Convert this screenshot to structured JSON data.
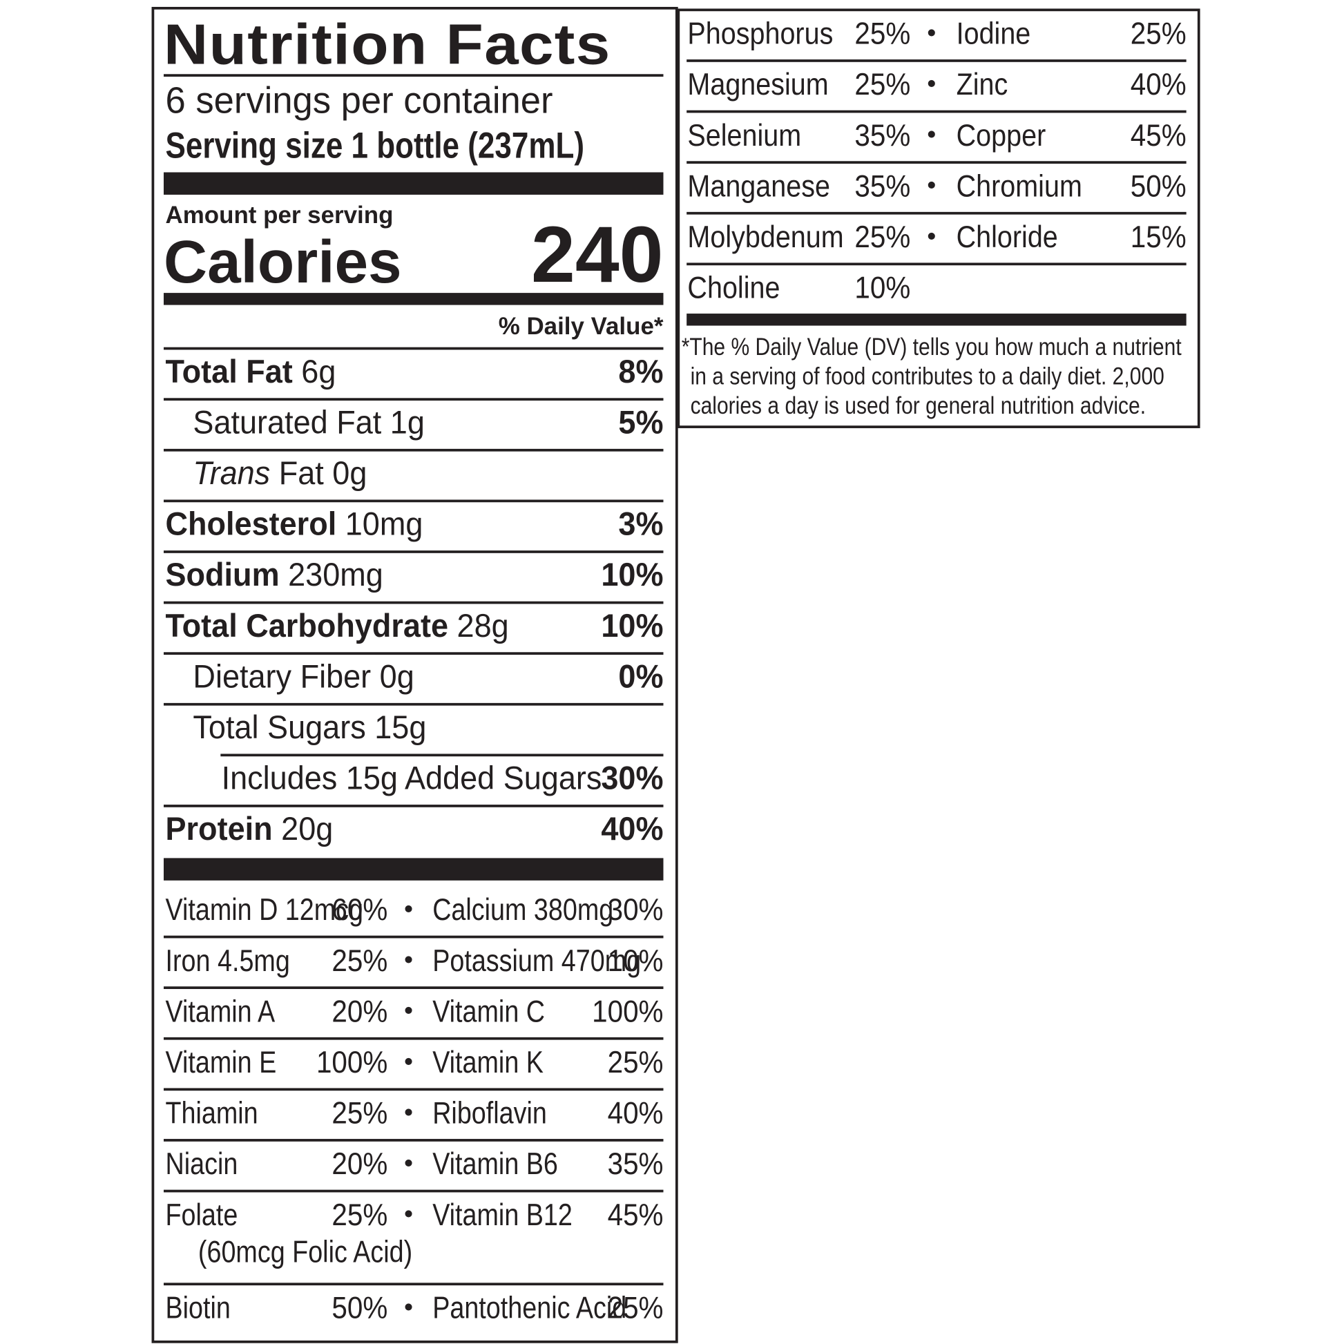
{
  "title": "Nutrition Facts",
  "servings": "6 servings per container",
  "serving_size": "Serving size 1 bottle (237mL)",
  "amount_per_serving": "Amount per serving",
  "calories_label": "Calories",
  "calories": 240,
  "daily_value_header": "% Daily Value*",
  "nutrients": [
    {
      "name": "Total Fat",
      "amount": "6g",
      "dv": "8%",
      "bold": true,
      "indent": 0
    },
    {
      "name": "Saturated Fat",
      "amount": "1g",
      "dv": "5%",
      "indent": 1
    },
    {
      "italic": "Trans",
      "name": "Fat",
      "amount": "0g",
      "indent": 1
    },
    {
      "name": "Cholesterol",
      "amount": "10mg",
      "dv": "3%",
      "bold": true,
      "indent": 0
    },
    {
      "name": "Sodium",
      "amount": "230mg",
      "dv": "10%",
      "bold": true,
      "indent": 0
    },
    {
      "name": "Total Carbohydrate",
      "amount": "28g",
      "dv": "10%",
      "bold": true,
      "indent": 0
    },
    {
      "name": "Dietary Fiber",
      "amount": "0g",
      "dv": "0%",
      "indent": 1
    },
    {
      "name": "Total Sugars",
      "amount": "15g",
      "indent": 1
    },
    {
      "name": "Includes 15g Added Sugars",
      "dv": "30%",
      "indent": 2
    },
    {
      "name": "Protein",
      "amount": "20g",
      "dv": "40%",
      "bold": true,
      "indent": 0
    }
  ],
  "vitamins": [
    {
      "left": {
        "name": "Vitamin D 12mcg",
        "dv": "60%"
      },
      "right": {
        "name": "Calcium 380mg",
        "dv": "30%"
      }
    },
    {
      "left": {
        "name": "Iron 4.5mg",
        "dv": "25%"
      },
      "right": {
        "name": "Potassium 470mg",
        "dv": "10%"
      }
    },
    {
      "left": {
        "name": "Vitamin A",
        "dv": "20%"
      },
      "right": {
        "name": "Vitamin C",
        "dv": "100%"
      }
    },
    {
      "left": {
        "name": "Vitamin E",
        "dv": "100%"
      },
      "right": {
        "name": "Vitamin K",
        "dv": "25%"
      }
    },
    {
      "left": {
        "name": "Thiamin",
        "dv": "25%"
      },
      "right": {
        "name": "Riboflavin",
        "dv": "40%"
      }
    },
    {
      "left": {
        "name": "Niacin",
        "dv": "20%"
      },
      "right": {
        "name": "Vitamin B6",
        "dv": "35%"
      }
    },
    {
      "left": {
        "name": "Folate",
        "dv": "25%",
        "note": "(60mcg Folic Acid)"
      },
      "right": {
        "name": "Vitamin B12",
        "dv": "45%"
      }
    },
    {
      "left": {
        "name": "Biotin",
        "dv": "50%"
      },
      "right": {
        "name": "Pantothenic Acid",
        "dv": "25%"
      }
    }
  ],
  "minerals": [
    {
      "left": {
        "name": "Phosphorus",
        "dv": "25%"
      },
      "right": {
        "name": "Iodine",
        "dv": "25%"
      }
    },
    {
      "left": {
        "name": "Magnesium",
        "dv": "25%"
      },
      "right": {
        "name": "Zinc",
        "dv": "40%"
      }
    },
    {
      "left": {
        "name": "Selenium",
        "dv": "35%"
      },
      "right": {
        "name": "Copper",
        "dv": "45%"
      }
    },
    {
      "left": {
        "name": "Manganese",
        "dv": "35%"
      },
      "right": {
        "name": "Chromium",
        "dv": "50%"
      }
    },
    {
      "left": {
        "name": "Molybdenum",
        "dv": "25%"
      },
      "right": {
        "name": "Chloride",
        "dv": "15%"
      }
    },
    {
      "left": {
        "name": "Choline",
        "dv": "10%"
      }
    }
  ],
  "footnote": "*The % Daily Value (DV) tells you how much a nutrient in a serving of food contributes to a daily diet. 2,000 calories a day is used for general nutrition advice."
}
